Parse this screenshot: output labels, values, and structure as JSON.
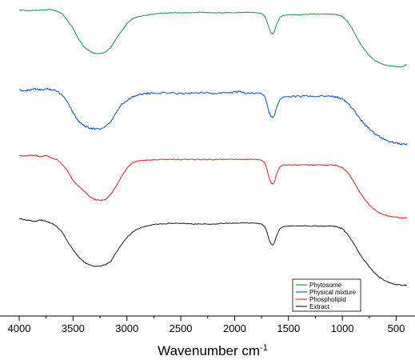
{
  "chart_data": {
    "type": "line",
    "title": "",
    "xlabel": "Wavenumber cm",
    "xlabel_sup": "-1",
    "ylabel": "",
    "xlim": [
      4000,
      400
    ],
    "x_reversed": true,
    "xticks": [
      4000,
      3500,
      3000,
      2500,
      2000,
      1500,
      1000,
      500
    ],
    "y_ticks_shown": false,
    "grid": false,
    "legend_position": "bottom-right",
    "series": [
      {
        "name": "Phytosome",
        "color": "#1f9e50",
        "offset": 3,
        "points": [
          [
            4000,
            0.97
          ],
          [
            3900,
            0.96
          ],
          [
            3800,
            0.97
          ],
          [
            3700,
            0.98
          ],
          [
            3650,
            0.95
          ],
          [
            3600,
            0.92
          ],
          [
            3500,
            0.7
          ],
          [
            3450,
            0.55
          ],
          [
            3400,
            0.43
          ],
          [
            3350,
            0.37
          ],
          [
            3300,
            0.33
          ],
          [
            3250,
            0.33
          ],
          [
            3200,
            0.35
          ],
          [
            3150,
            0.42
          ],
          [
            3100,
            0.55
          ],
          [
            3050,
            0.66
          ],
          [
            3000,
            0.77
          ],
          [
            2950,
            0.84
          ],
          [
            2900,
            0.87
          ],
          [
            2800,
            0.9
          ],
          [
            2700,
            0.92
          ],
          [
            2600,
            0.93
          ],
          [
            2500,
            0.93
          ],
          [
            2400,
            0.93
          ],
          [
            2300,
            0.94
          ],
          [
            2200,
            0.93
          ],
          [
            2100,
            0.93
          ],
          [
            2000,
            0.93
          ],
          [
            1900,
            0.94
          ],
          [
            1800,
            0.93
          ],
          [
            1750,
            0.92
          ],
          [
            1720,
            0.88
          ],
          [
            1700,
            0.8
          ],
          [
            1680,
            0.7
          ],
          [
            1660,
            0.63
          ],
          [
            1645,
            0.62
          ],
          [
            1630,
            0.66
          ],
          [
            1610,
            0.76
          ],
          [
            1580,
            0.86
          ],
          [
            1550,
            0.89
          ],
          [
            1500,
            0.9
          ],
          [
            1400,
            0.9
          ],
          [
            1300,
            0.91
          ],
          [
            1200,
            0.91
          ],
          [
            1100,
            0.91
          ],
          [
            1050,
            0.9
          ],
          [
            1000,
            0.88
          ],
          [
            950,
            0.8
          ],
          [
            900,
            0.67
          ],
          [
            850,
            0.52
          ],
          [
            800,
            0.4
          ],
          [
            750,
            0.3
          ],
          [
            700,
            0.23
          ],
          [
            650,
            0.19
          ],
          [
            600,
            0.16
          ],
          [
            550,
            0.15
          ],
          [
            500,
            0.14
          ],
          [
            450,
            0.13
          ],
          [
            400,
            0.17
          ]
        ]
      },
      {
        "name": "Physical mixture",
        "color": "#1060d8",
        "offset": 2,
        "points": [
          [
            4000,
            0.85
          ],
          [
            3950,
            0.84
          ],
          [
            3900,
            0.86
          ],
          [
            3850,
            0.87
          ],
          [
            3800,
            0.85
          ],
          [
            3750,
            0.87
          ],
          [
            3700,
            0.86
          ],
          [
            3650,
            0.84
          ],
          [
            3600,
            0.78
          ],
          [
            3550,
            0.68
          ],
          [
            3500,
            0.52
          ],
          [
            3450,
            0.4
          ],
          [
            3400,
            0.33
          ],
          [
            3350,
            0.3
          ],
          [
            3300,
            0.28
          ],
          [
            3250,
            0.28
          ],
          [
            3200,
            0.31
          ],
          [
            3150,
            0.38
          ],
          [
            3100,
            0.52
          ],
          [
            3050,
            0.64
          ],
          [
            3000,
            0.7
          ],
          [
            2950,
            0.75
          ],
          [
            2900,
            0.78
          ],
          [
            2850,
            0.8
          ],
          [
            2800,
            0.8
          ],
          [
            2700,
            0.81
          ],
          [
            2600,
            0.81
          ],
          [
            2500,
            0.8
          ],
          [
            2400,
            0.81
          ],
          [
            2300,
            0.82
          ],
          [
            2200,
            0.8
          ],
          [
            2100,
            0.81
          ],
          [
            2000,
            0.82
          ],
          [
            1950,
            0.83
          ],
          [
            1900,
            0.81
          ],
          [
            1800,
            0.81
          ],
          [
            1750,
            0.8
          ],
          [
            1720,
            0.76
          ],
          [
            1700,
            0.65
          ],
          [
            1680,
            0.52
          ],
          [
            1660,
            0.46
          ],
          [
            1645,
            0.45
          ],
          [
            1630,
            0.48
          ],
          [
            1610,
            0.6
          ],
          [
            1580,
            0.71
          ],
          [
            1550,
            0.75
          ],
          [
            1500,
            0.76
          ],
          [
            1400,
            0.76
          ],
          [
            1300,
            0.76
          ],
          [
            1200,
            0.76
          ],
          [
            1100,
            0.76
          ],
          [
            1050,
            0.75
          ],
          [
            1000,
            0.72
          ],
          [
            950,
            0.66
          ],
          [
            900,
            0.57
          ],
          [
            850,
            0.46
          ],
          [
            800,
            0.36
          ],
          [
            750,
            0.28
          ],
          [
            700,
            0.21
          ],
          [
            650,
            0.16
          ],
          [
            600,
            0.12
          ],
          [
            550,
            0.09
          ],
          [
            500,
            0.07
          ],
          [
            450,
            0.06
          ],
          [
            400,
            0.06
          ]
        ]
      },
      {
        "name": "Phospholipid",
        "color": "#e33030",
        "offset": 1,
        "points": [
          [
            4000,
            0.95
          ],
          [
            3950,
            0.94
          ],
          [
            3900,
            0.95
          ],
          [
            3850,
            0.95
          ],
          [
            3800,
            0.93
          ],
          [
            3750,
            0.95
          ],
          [
            3700,
            0.91
          ],
          [
            3650,
            0.89
          ],
          [
            3600,
            0.82
          ],
          [
            3550,
            0.72
          ],
          [
            3500,
            0.58
          ],
          [
            3450,
            0.5
          ],
          [
            3400,
            0.43
          ],
          [
            3350,
            0.35
          ],
          [
            3300,
            0.3
          ],
          [
            3250,
            0.29
          ],
          [
            3200,
            0.3
          ],
          [
            3150,
            0.38
          ],
          [
            3100,
            0.5
          ],
          [
            3050,
            0.64
          ],
          [
            3000,
            0.76
          ],
          [
            2950,
            0.84
          ],
          [
            2900,
            0.87
          ],
          [
            2800,
            0.88
          ],
          [
            2700,
            0.89
          ],
          [
            2600,
            0.89
          ],
          [
            2500,
            0.89
          ],
          [
            2400,
            0.89
          ],
          [
            2300,
            0.89
          ],
          [
            2200,
            0.89
          ],
          [
            2100,
            0.89
          ],
          [
            2000,
            0.89
          ],
          [
            1900,
            0.89
          ],
          [
            1800,
            0.89
          ],
          [
            1750,
            0.88
          ],
          [
            1720,
            0.84
          ],
          [
            1700,
            0.75
          ],
          [
            1680,
            0.62
          ],
          [
            1660,
            0.54
          ],
          [
            1645,
            0.53
          ],
          [
            1630,
            0.56
          ],
          [
            1610,
            0.68
          ],
          [
            1580,
            0.78
          ],
          [
            1550,
            0.81
          ],
          [
            1500,
            0.81
          ],
          [
            1400,
            0.81
          ],
          [
            1300,
            0.81
          ],
          [
            1200,
            0.81
          ],
          [
            1100,
            0.81
          ],
          [
            1050,
            0.8
          ],
          [
            1000,
            0.77
          ],
          [
            950,
            0.7
          ],
          [
            900,
            0.58
          ],
          [
            850,
            0.44
          ],
          [
            800,
            0.32
          ],
          [
            750,
            0.22
          ],
          [
            700,
            0.15
          ],
          [
            650,
            0.1
          ],
          [
            600,
            0.07
          ],
          [
            550,
            0.05
          ],
          [
            500,
            0.04
          ],
          [
            450,
            0.03
          ],
          [
            400,
            0.03
          ]
        ]
      },
      {
        "name": "Extract",
        "color": "#2d2d2d",
        "offset": 0,
        "points": [
          [
            4000,
            1.08
          ],
          [
            3950,
            1.06
          ],
          [
            3900,
            1.05
          ],
          [
            3850,
            1.04
          ],
          [
            3800,
            1.06
          ],
          [
            3750,
            1.04
          ],
          [
            3700,
            1.01
          ],
          [
            3650,
            0.96
          ],
          [
            3600,
            0.88
          ],
          [
            3550,
            0.74
          ],
          [
            3500,
            0.62
          ],
          [
            3450,
            0.52
          ],
          [
            3400,
            0.44
          ],
          [
            3350,
            0.4
          ],
          [
            3300,
            0.38
          ],
          [
            3250,
            0.38
          ],
          [
            3200,
            0.4
          ],
          [
            3150,
            0.45
          ],
          [
            3100,
            0.58
          ],
          [
            3050,
            0.7
          ],
          [
            3000,
            0.8
          ],
          [
            2950,
            0.88
          ],
          [
            2900,
            0.93
          ],
          [
            2800,
            0.98
          ],
          [
            2700,
            1.0
          ],
          [
            2600,
            1.01
          ],
          [
            2500,
            1.01
          ],
          [
            2400,
            1.0
          ],
          [
            2300,
            1.0
          ],
          [
            2200,
            1.0
          ],
          [
            2100,
            1.01
          ],
          [
            2000,
            1.01
          ],
          [
            1900,
            1.02
          ],
          [
            1800,
            1.01
          ],
          [
            1750,
            1.0
          ],
          [
            1720,
            0.96
          ],
          [
            1700,
            0.88
          ],
          [
            1680,
            0.77
          ],
          [
            1660,
            0.7
          ],
          [
            1645,
            0.69
          ],
          [
            1630,
            0.73
          ],
          [
            1610,
            0.83
          ],
          [
            1580,
            0.93
          ],
          [
            1550,
            0.96
          ],
          [
            1500,
            0.97
          ],
          [
            1400,
            0.97
          ],
          [
            1300,
            0.97
          ],
          [
            1200,
            0.97
          ],
          [
            1100,
            0.97
          ],
          [
            1050,
            0.96
          ],
          [
            1000,
            0.93
          ],
          [
            950,
            0.85
          ],
          [
            900,
            0.73
          ],
          [
            850,
            0.59
          ],
          [
            800,
            0.47
          ],
          [
            750,
            0.37
          ],
          [
            700,
            0.28
          ],
          [
            650,
            0.21
          ],
          [
            600,
            0.16
          ],
          [
            550,
            0.13
          ],
          [
            500,
            0.11
          ],
          [
            450,
            0.1
          ],
          [
            400,
            0.1
          ]
        ]
      }
    ]
  }
}
